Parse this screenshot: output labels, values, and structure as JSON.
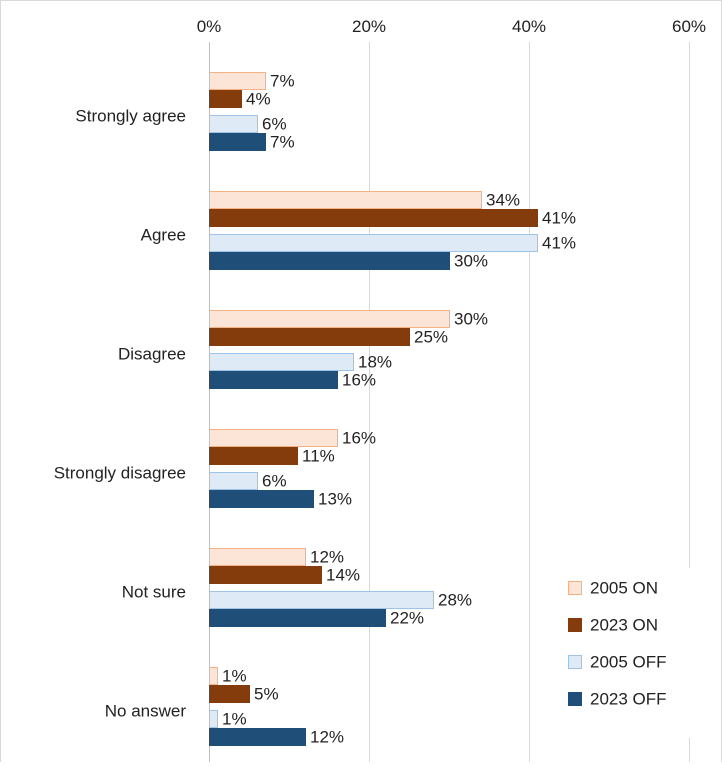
{
  "chart_data": {
    "type": "bar",
    "orientation": "horizontal",
    "title": "",
    "xlabel": "",
    "ylabel": "",
    "xlim": [
      0,
      60
    ],
    "x_ticks": [
      0,
      20,
      40,
      60
    ],
    "x_tick_labels": [
      "0%",
      "20%",
      "40%",
      "60%"
    ],
    "grid": true,
    "legend_position": "bottom-right",
    "categories": [
      "Strongly agree",
      "Agree",
      "Disagree",
      "Strongly disagree",
      "Not sure",
      "No answer"
    ],
    "series": [
      {
        "name": "2005 ON",
        "fill": "#FCE4D6",
        "stroke": "#F4B183",
        "values": [
          7,
          34,
          30,
          16,
          12,
          1
        ],
        "labels": [
          "7%",
          "34%",
          "30%",
          "16%",
          "12%",
          "1%"
        ]
      },
      {
        "name": "2023 ON",
        "fill": "#843C0C",
        "stroke": "#843C0C",
        "values": [
          4,
          41,
          25,
          11,
          14,
          5
        ],
        "labels": [
          "4%",
          "41%",
          "25%",
          "11%",
          "14%",
          "5%"
        ]
      },
      {
        "name": "2005 OFF",
        "fill": "#DEEBF7",
        "stroke": "#9DC3E6",
        "values": [
          6,
          41,
          18,
          6,
          28,
          1
        ],
        "labels": [
          "6%",
          "41%",
          "18%",
          "6%",
          "28%",
          "1%"
        ]
      },
      {
        "name": "2023 OFF",
        "fill": "#1F4E79",
        "stroke": "#1F4E79",
        "values": [
          7,
          30,
          16,
          13,
          22,
          12
        ],
        "labels": [
          "7%",
          "30%",
          "16%",
          "13%",
          "22%",
          "12%"
        ]
      }
    ]
  }
}
